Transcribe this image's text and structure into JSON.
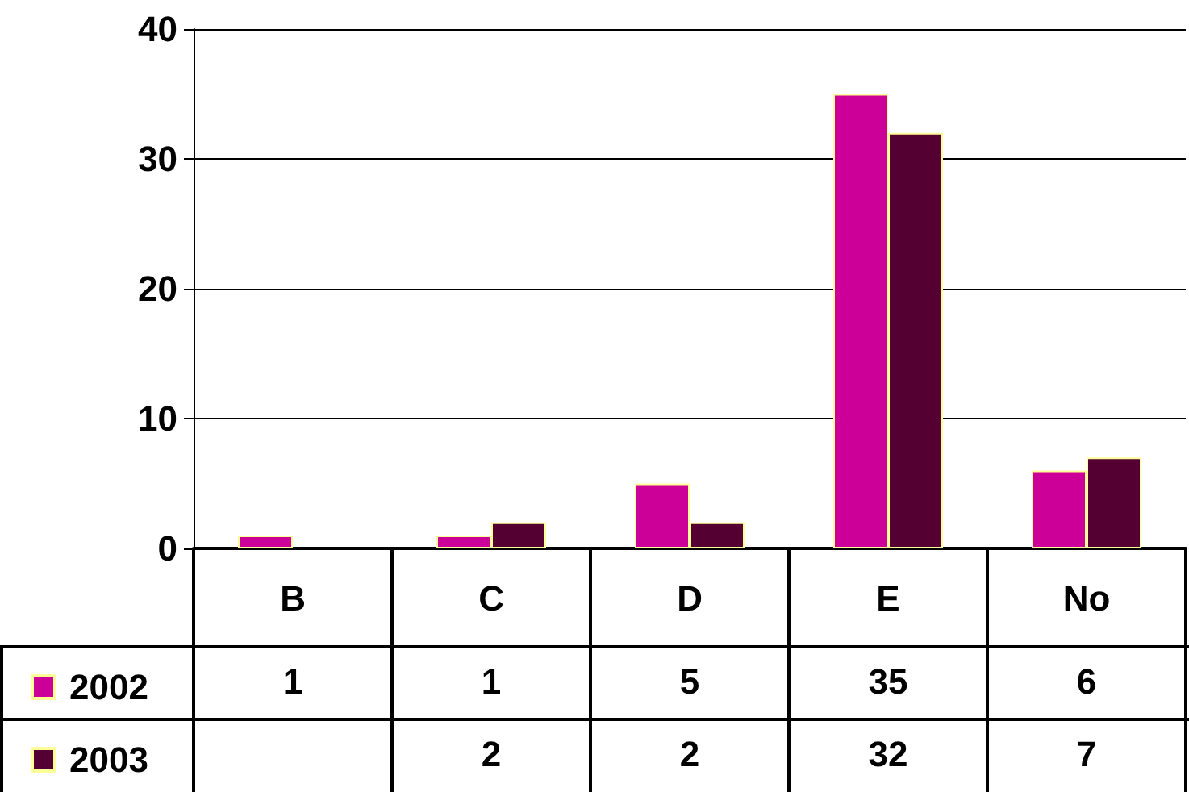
{
  "chart_data": {
    "type": "bar",
    "categories": [
      "B",
      "C",
      "D",
      "E",
      "No"
    ],
    "series": [
      {
        "name": "2002",
        "color": "#cc0099",
        "values": [
          1,
          1,
          5,
          35,
          6
        ]
      },
      {
        "name": "2003",
        "color": "#550033",
        "values": [
          null,
          2,
          2,
          32,
          7
        ]
      }
    ],
    "ylim": [
      0,
      40
    ],
    "yticks": [
      0,
      10,
      20,
      30,
      40
    ],
    "grid": "y",
    "legend": "bottom left",
    "data_labels": true
  }
}
